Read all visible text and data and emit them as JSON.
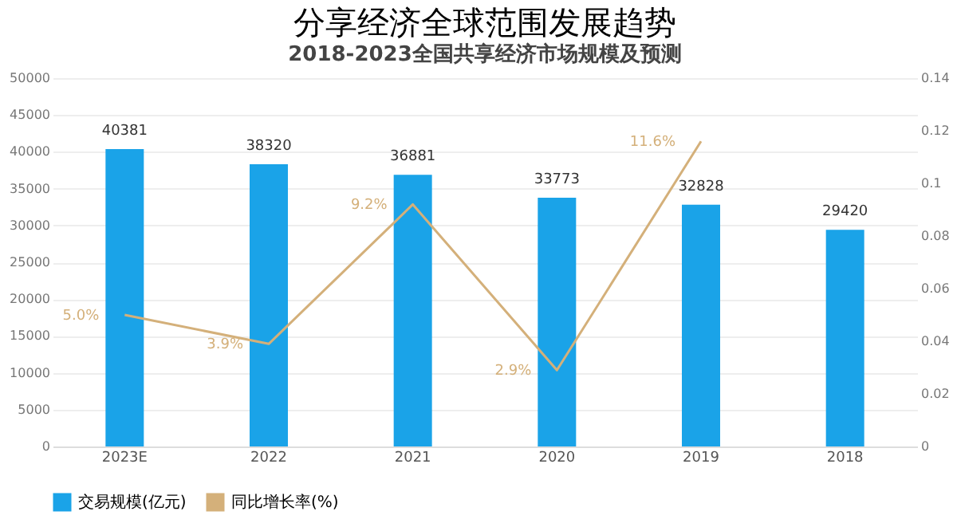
{
  "chart_data": {
    "type": "bar",
    "title": "分享经济全球范围发展趋势",
    "subtitle": "2018-2023全国共享经济市场规模及预测",
    "categories": [
      "2023E",
      "2022",
      "2021",
      "2020",
      "2019",
      "2018"
    ],
    "series": [
      {
        "name": "交易规模(亿元)",
        "color": "#1aa3e8",
        "values": [
          40381,
          38320,
          36881,
          33773,
          32828,
          29420
        ]
      },
      {
        "name": "同比增长率(%)",
        "type": "line",
        "axis": "y2",
        "color": "#d4b07a",
        "values": [
          0.05,
          0.039,
          0.092,
          0.029,
          0.116,
          null
        ],
        "value_labels": [
          "5.0%",
          "3.9%",
          "9.2%",
          "2.9%",
          "11.6%",
          null
        ]
      }
    ],
    "data_labels": true,
    "ylim": [
      0,
      50000
    ],
    "yticks": [
      0,
      5000,
      10000,
      15000,
      20000,
      25000,
      30000,
      35000,
      40000,
      45000,
      50000
    ],
    "y2lim": [
      0,
      0.14
    ],
    "y2ticks": [
      0,
      0.02,
      0.04,
      0.06,
      0.08,
      0.1,
      0.12,
      0.14
    ],
    "grid": "y",
    "legend": "bottom"
  }
}
